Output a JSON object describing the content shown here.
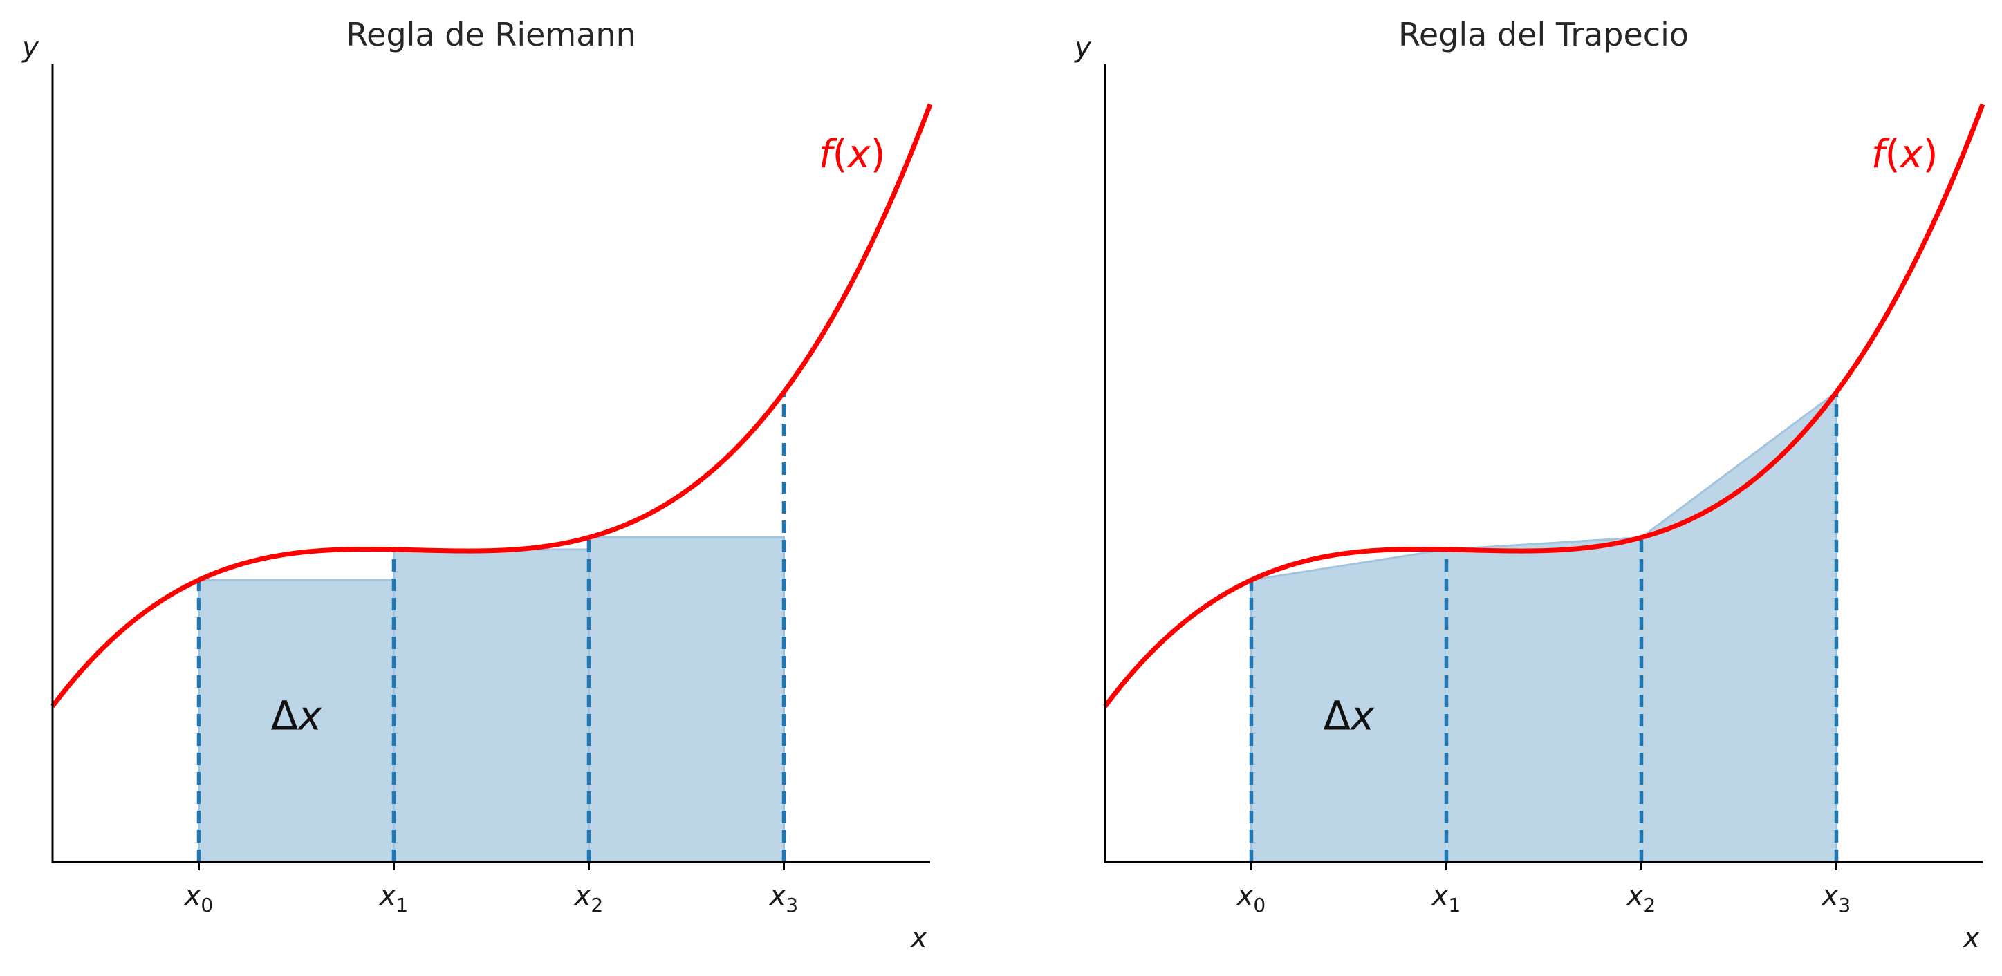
{
  "chart_data": [
    {
      "type": "area",
      "title": "Regla de Riemann",
      "method": "riemann-left",
      "xlabel": "x",
      "ylabel": "y",
      "xlim": [
        0,
        4.5
      ],
      "ylim": [
        0,
        4.1
      ],
      "function_label": "f(x)",
      "function": {
        "name": "f",
        "x_range": [
          0,
          4.5
        ]
      },
      "nodes": [
        {
          "x": 0.75,
          "tick_base": "x",
          "tick_sub": "0"
        },
        {
          "x": 1.75,
          "tick_base": "x",
          "tick_sub": "1"
        },
        {
          "x": 2.75,
          "tick_base": "x",
          "tick_sub": "2"
        },
        {
          "x": 3.75,
          "tick_base": "x",
          "tick_sub": "3"
        }
      ],
      "annotation": {
        "text": "Δx",
        "x": 1.25,
        "y": 0.68
      },
      "fx_label_pos": {
        "x": 4.1,
        "y": 3.57
      },
      "grid": false,
      "colors": {
        "curve": "#ff0000",
        "fill": "#bcd6e8",
        "fill_edge": "#a2c4de",
        "dash": "#1f77b4"
      }
    },
    {
      "type": "area",
      "title": "Regla del Trapecio",
      "method": "trapezoid",
      "xlabel": "x",
      "ylabel": "y",
      "xlim": [
        0,
        4.5
      ],
      "ylim": [
        0,
        4.1
      ],
      "function_label": "f(x)",
      "function": {
        "name": "f",
        "x_range": [
          0,
          4.5
        ]
      },
      "nodes": [
        {
          "x": 0.75,
          "tick_base": "x",
          "tick_sub": "0"
        },
        {
          "x": 1.75,
          "tick_base": "x",
          "tick_sub": "1"
        },
        {
          "x": 2.75,
          "tick_base": "x",
          "tick_sub": "2"
        },
        {
          "x": 3.75,
          "tick_base": "x",
          "tick_sub": "3"
        }
      ],
      "annotation": {
        "text": "Δx",
        "x": 1.25,
        "y": 0.68
      },
      "fx_label_pos": {
        "x": 4.1,
        "y": 3.57
      },
      "grid": false,
      "colors": {
        "curve": "#ff0000",
        "fill": "#bcd6e8",
        "fill_edge": "#a2c4de",
        "dash": "#1f77b4"
      }
    }
  ]
}
